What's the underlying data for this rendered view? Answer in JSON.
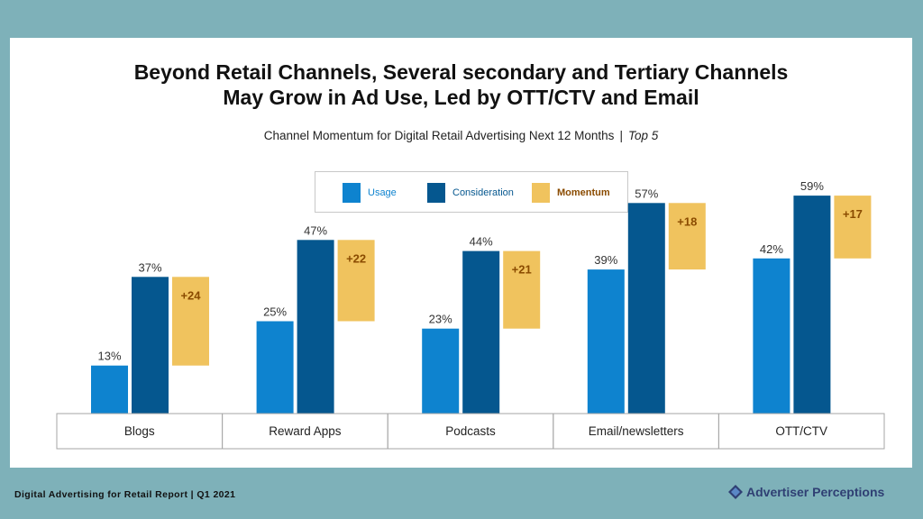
{
  "footer": {
    "report": "Digital Advertising for Retail Report  |  Q1 2021",
    "brand": "Advertiser Perceptions"
  },
  "colors": {
    "usage": "#0e83cf",
    "consideration": "#05578f",
    "momentum": "#f0c35e",
    "momentum_text": "#8a4b00"
  },
  "chart_data": {
    "type": "bar",
    "title_line1": "Beyond Retail Channels, Several secondary and Tertiary Channels",
    "title_line2": "May Grow in Ad Use, Led by OTT/CTV and Email",
    "subtitle": "Channel Momentum for Digital Retail Advertising Next 12 Months",
    "subtitle_tag": "Top 5",
    "categories": [
      "Blogs",
      "Reward Apps",
      "Podcasts",
      "Email/newsletters",
      "OTT/CTV"
    ],
    "series": [
      {
        "name": "Usage",
        "values": [
          13,
          25,
          23,
          39,
          42
        ],
        "labels": [
          "13%",
          "25%",
          "23%",
          "39%",
          "42%"
        ]
      },
      {
        "name": "Consideration",
        "values": [
          37,
          47,
          44,
          57,
          59
        ],
        "labels": [
          "37%",
          "47%",
          "44%",
          "57%",
          "59%"
        ]
      },
      {
        "name": "Momentum",
        "values": [
          24,
          22,
          21,
          18,
          17
        ],
        "labels": [
          "+24",
          "+22",
          "+21",
          "+18",
          "+17"
        ]
      }
    ],
    "ylim": [
      0,
      60
    ],
    "legend": "top-center",
    "grid": false
  }
}
